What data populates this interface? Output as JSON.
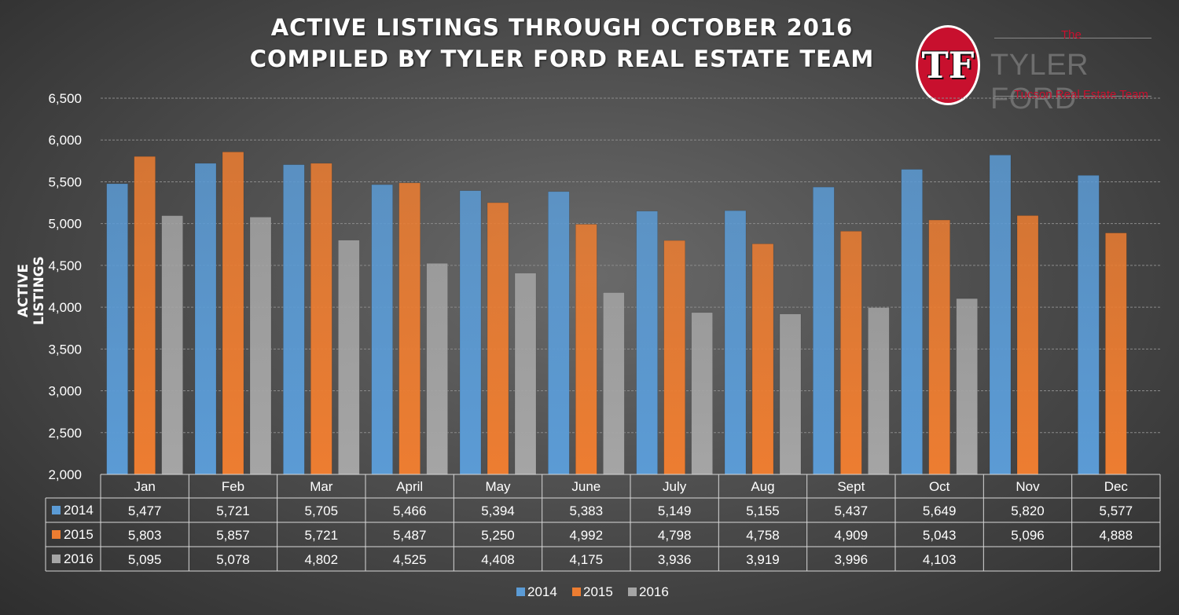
{
  "chart_data": {
    "type": "bar",
    "title_line1": "ACTIVE LISTINGS THROUGH OCTOBER 2016",
    "title_line2": "COMPILED BY TYLER FORD REAL ESTATE TEAM",
    "ylabel": "ACTIVE LISTINGS",
    "xlabel": "",
    "ylim": [
      2000,
      6500
    ],
    "yticks": [
      2000,
      2500,
      3000,
      3500,
      4000,
      4500,
      5000,
      5500,
      6000,
      6500
    ],
    "ytick_labels": [
      "2,000",
      "2,500",
      "3,000",
      "3,500",
      "4,000",
      "4,500",
      "5,000",
      "5,500",
      "6,000",
      "6,500"
    ],
    "categories": [
      "Jan",
      "Feb",
      "Mar",
      "April",
      "May",
      "June",
      "July",
      "Aug",
      "Sept",
      "Oct",
      "Nov",
      "Dec"
    ],
    "grid": true,
    "legend_position": "bottom",
    "series": [
      {
        "name": "2014",
        "color": "#5b9bd5",
        "values": [
          5477,
          5721,
          5705,
          5466,
          5394,
          5383,
          5149,
          5155,
          5437,
          5649,
          5820,
          5577
        ],
        "labels": [
          "5,477",
          "5,721",
          "5,705",
          "5,466",
          "5,394",
          "5,383",
          "5,149",
          "5,155",
          "5,437",
          "5,649",
          "5,820",
          "5,577"
        ]
      },
      {
        "name": "2015",
        "color": "#ed7d31",
        "values": [
          5803,
          5857,
          5721,
          5487,
          5250,
          4992,
          4798,
          4758,
          4909,
          5043,
          5096,
          4888
        ],
        "labels": [
          "5,803",
          "5,857",
          "5,721",
          "5,487",
          "5,250",
          "4,992",
          "4,798",
          "4,758",
          "4,909",
          "5,043",
          "5,096",
          "4,888"
        ]
      },
      {
        "name": "2016",
        "color": "#a5a5a5",
        "values": [
          5095,
          5078,
          4802,
          4525,
          4408,
          4175,
          3936,
          3919,
          3996,
          4103,
          null,
          null
        ],
        "labels": [
          "5,095",
          "5,078",
          "4,802",
          "4,525",
          "4,408",
          "4,175",
          "3,936",
          "3,919",
          "3,996",
          "4,103",
          "",
          ""
        ]
      }
    ]
  },
  "logo": {
    "mark": "TF",
    "the": "The",
    "name": "TYLER FORD",
    "tagline": "Tucson Real Estate Team"
  }
}
